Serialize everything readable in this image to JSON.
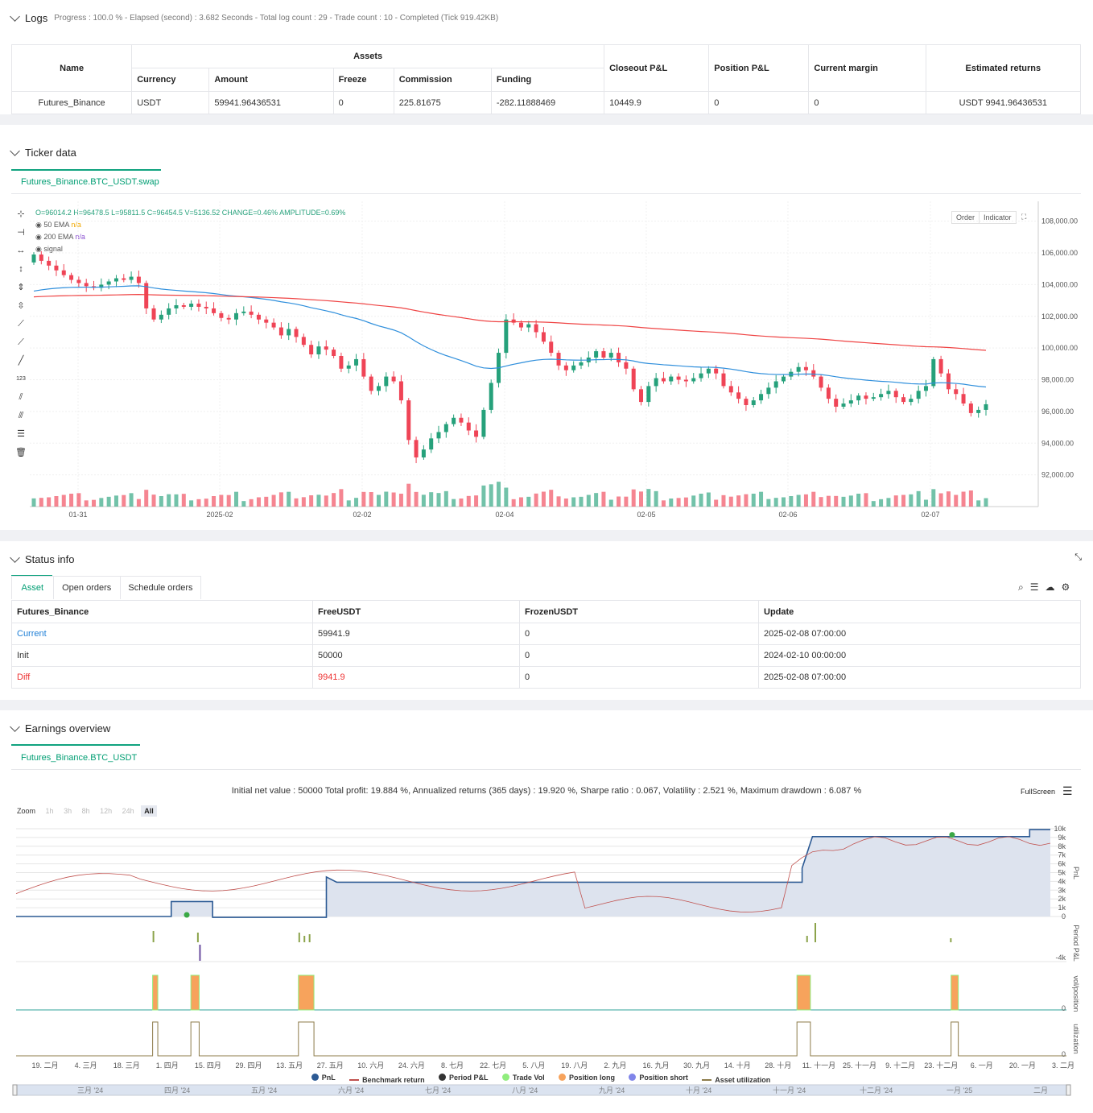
{
  "logs": {
    "title": "Logs",
    "status": "Progress : 100.0 % - Elapsed (second) : 3.682  Seconds - Total log count : 29 - Trade count : 10 - Completed (Tick 919.42KB)",
    "table": {
      "h_name": "Name",
      "h_assets": "Assets",
      "h_closeout": "Closeout P&L",
      "h_position": "Position P&L",
      "h_margin": "Current margin",
      "h_returns": "Estimated returns",
      "h_currency": "Currency",
      "h_amount": "Amount",
      "h_freeze": "Freeze",
      "h_commission": "Commission",
      "h_funding": "Funding",
      "row": {
        "name": "Futures_Binance",
        "currency": "USDT",
        "amount": "59941.96436531",
        "freeze": "0",
        "commission": "225.81675",
        "funding": "-282.11888469",
        "closeout": "10449.9",
        "position": "0",
        "margin": "0",
        "returns": "USDT 9941.96436531"
      }
    }
  },
  "ticker": {
    "title": "Ticker data",
    "tab": "Futures_Binance.BTC_USDT.swap",
    "ohlc": "O=96014.2 H=96478.5 L=95811.5 C=96454.5 V=5136.52 CHANGE=0.46% AMPLITUDE=0.69%",
    "ind1": "50 EMA",
    "ind1_val": "n/a",
    "ind2": "200 EMA",
    "ind2_val": "n/a",
    "ind3": "signal",
    "order_btn": "Order",
    "indicator_btn": "Indicator",
    "colors": {
      "up": "#26a17b",
      "down": "#ef4456",
      "ema50": "#2f8fdc",
      "ema200": "#ef4444"
    }
  },
  "chart_data": [
    {
      "type": "candlestick",
      "y_ticks": [
        "108,000.00",
        "106,000.00",
        "104,000.00",
        "102,000.00",
        "100,000.00",
        "98,000.00",
        "96,000.00",
        "94,000.00",
        "92,000.00"
      ],
      "ylim": [
        90000,
        109000
      ],
      "x_ticks": [
        "01-31",
        "2025-02",
        "02-02",
        "02-04",
        "02-05",
        "02-06",
        "02-07"
      ],
      "series": [
        {
          "name": "50 EMA"
        },
        {
          "name": "200 EMA"
        }
      ],
      "close": [
        105900,
        105500,
        105200,
        104900,
        104600,
        104300,
        104100,
        103900,
        103800,
        104000,
        104200,
        104400,
        104300,
        104500,
        104100,
        102500,
        101800,
        102100,
        102500,
        102700,
        102600,
        102800,
        102600,
        102500,
        102200,
        101900,
        101800,
        102200,
        102300,
        102100,
        101800,
        101600,
        101300,
        100800,
        101200,
        100700,
        100200,
        99600,
        100100,
        99900,
        99500,
        98700,
        98900,
        99300,
        98200,
        97300,
        97600,
        98200,
        97900,
        96700,
        94200,
        93100,
        93600,
        94300,
        94700,
        95200,
        95600,
        95300,
        94800,
        94400,
        96100,
        97800,
        99700,
        101800,
        101600,
        101300,
        101500,
        101000,
        100400,
        99700,
        98900,
        98600,
        98900,
        99100,
        99400,
        99800,
        99400,
        99700,
        99100,
        98700,
        97400,
        96600,
        97600,
        98100,
        97900,
        98200,
        98000,
        97900,
        98100,
        98400,
        98700,
        98400,
        97600,
        97200,
        96800,
        96400,
        96700,
        97100,
        97500,
        97900,
        98200,
        98500,
        98800,
        98600,
        98200,
        97500,
        96800,
        96300,
        96500,
        96700,
        97000,
        96800,
        96900,
        97100,
        97300,
        96900,
        96600,
        96800,
        97300,
        97600,
        99300,
        98400,
        97400,
        97100,
        96500,
        95900,
        96100,
        96454
      ]
    },
    {
      "type": "line",
      "title": "Earnings overview",
      "summary": "Initial net value : 50000 Total profit: 19.884 %, Annualized returns (365 days) : 19.920 %, Sharpe ratio : 0.067, Volatility : 2.521 %, Maximum drawdown : 6.087 %",
      "y_ticks_pnl": [
        "10k",
        "9k",
        "8k",
        "7k",
        "6k",
        "5k",
        "4k",
        "3k",
        "2k",
        "1k",
        "0"
      ],
      "y_tick_period": "-4k",
      "y_tick_vol": "0",
      "y_tick_util": "0",
      "axis_titles": [
        "PnL",
        "Period P&L",
        "vol/position",
        "utilization"
      ],
      "x_ticks": [
        "19. 二月",
        "4. 三月",
        "18. 三月",
        "1. 四月",
        "15. 四月",
        "29. 四月",
        "13. 五月",
        "27. 五月",
        "10. 六月",
        "24. 六月",
        "8. 七月",
        "22. 七月",
        "5. 八月",
        "19. 八月",
        "2. 九月",
        "16. 九月",
        "30. 九月",
        "14. 十月",
        "28. 十月",
        "11. 十一月",
        "25. 十一月",
        "9. 十二月",
        "23. 十二月",
        "6. 一月",
        "20. 一月",
        "3. 二月"
      ],
      "navigator": [
        "三月 '24",
        "四月 '24",
        "五月 '24",
        "六月 '24",
        "七月 '24",
        "八月 '24",
        "九月 '24",
        "十月 '24",
        "十一月 '24",
        "十二月 '24",
        "一月 '25",
        "二月"
      ],
      "pnl_steps": [
        [
          0,
          0
        ],
        [
          15,
          0
        ],
        [
          15,
          1700
        ],
        [
          19,
          1700
        ],
        [
          19,
          -100
        ],
        [
          30,
          -100
        ],
        [
          30,
          4500
        ],
        [
          31,
          3900
        ],
        [
          76,
          3900
        ],
        [
          76,
          5500
        ],
        [
          77,
          9100
        ],
        [
          98,
          9100
        ],
        [
          98,
          9900
        ],
        [
          100,
          9900
        ]
      ],
      "legend": [
        "PnL",
        "Benchmark return",
        "Period P&L",
        "Trade Vol",
        "Position long",
        "Position short",
        "Asset utilization"
      ],
      "legend_colors": [
        "#2c5a94",
        "#c0504d",
        "#333333",
        "#90ed7d",
        "#f7a35c",
        "#8085e9",
        "#8c7b4a"
      ]
    }
  ],
  "status": {
    "title": "Status info",
    "tabs": [
      "Asset",
      "Open orders",
      "Schedule orders"
    ],
    "headers": [
      "Futures_Binance",
      "FreeUSDT",
      "FrozenUSDT",
      "Update"
    ],
    "rows": [
      {
        "label": "Current",
        "free": "59941.9",
        "frozen": "0",
        "update": "2025-02-08 07:00:00"
      },
      {
        "label": "Init",
        "free": "50000",
        "frozen": "0",
        "update": "2024-02-10 00:00:00"
      },
      {
        "label": "Diff",
        "free": "9941.9",
        "frozen": "0",
        "update": "2025-02-08 07:00:00"
      }
    ]
  },
  "earnings": {
    "title": "Earnings overview",
    "tab": "Futures_Binance.BTC_USDT",
    "fullscreen": "FullScreen",
    "zoom_label": "Zoom",
    "zoom_opts": [
      "1h",
      "3h",
      "8h",
      "12h",
      "24h",
      "All"
    ]
  }
}
